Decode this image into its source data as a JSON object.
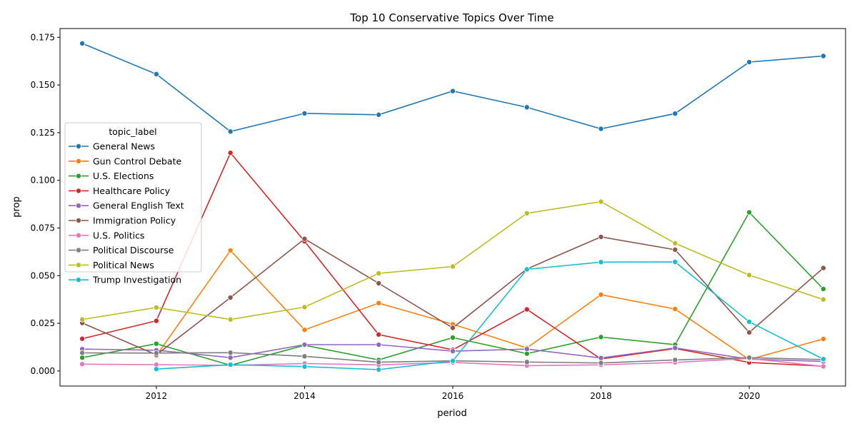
{
  "chart_data": {
    "type": "line",
    "title": "Top 10 Conservative Topics Over Time",
    "xlabel": "period",
    "ylabel": "prop",
    "xlim": [
      2010.7,
      2021.3
    ],
    "ylim": [
      -0.0079,
      0.1796
    ],
    "xticks": [
      2012,
      2014,
      2016,
      2018,
      2020
    ],
    "yticks": [
      0.0,
      0.025,
      0.05,
      0.075,
      0.1,
      0.125,
      0.15,
      0.175
    ],
    "grid": false,
    "legend": {
      "title": "topic_label",
      "placement": "center-left"
    },
    "series": [
      {
        "name": "General News",
        "color": "#1f77b4",
        "x": [
          2011,
          2012,
          2013,
          2014,
          2015,
          2016,
          2017,
          2018,
          2019,
          2020,
          2021
        ],
        "y": [
          0.1718,
          0.1557,
          0.1256,
          0.1351,
          0.1344,
          0.1468,
          0.1383,
          0.127,
          0.135,
          0.162,
          0.1652
        ]
      },
      {
        "name": "Gun Control Debate",
        "color": "#ff7f0e",
        "x": [
          2012,
          2013,
          2014,
          2015,
          2016,
          2017,
          2018,
          2019,
          2020,
          2021
        ],
        "y": [
          0.008,
          0.0632,
          0.0216,
          0.0356,
          0.0245,
          0.0121,
          0.04,
          0.0325,
          0.006,
          0.0168
        ]
      },
      {
        "name": "U.S. Elections",
        "color": "#2ca02c",
        "x": [
          2011,
          2012,
          2013,
          2014,
          2015,
          2016,
          2017,
          2018,
          2019,
          2020,
          2021
        ],
        "y": [
          0.007,
          0.0143,
          0.003,
          0.0135,
          0.0058,
          0.0175,
          0.0091,
          0.0178,
          0.0138,
          0.0832,
          0.043
        ]
      },
      {
        "name": "Healthcare Policy",
        "color": "#d62728",
        "x": [
          2011,
          2012,
          2013,
          2014,
          2015,
          2016,
          2017,
          2018,
          2019,
          2020,
          2021
        ],
        "y": [
          0.0169,
          0.0263,
          0.1144,
          0.068,
          0.0191,
          0.0111,
          0.0323,
          0.0063,
          0.0118,
          0.0045,
          0.0025
        ]
      },
      {
        "name": "General English Text",
        "color": "#9467bd",
        "x": [
          2011,
          2012,
          2013,
          2014,
          2015,
          2016,
          2017,
          2018,
          2019,
          2020,
          2021
        ],
        "y": [
          0.0115,
          0.0109,
          0.007,
          0.0138,
          0.0138,
          0.0104,
          0.0115,
          0.0068,
          0.0121,
          0.0062,
          0.005
        ]
      },
      {
        "name": "Immigration Policy",
        "color": "#8c564b",
        "x": [
          2011,
          2012,
          2013,
          2014,
          2015,
          2016,
          2017,
          2018,
          2019,
          2020,
          2021
        ],
        "y": [
          0.0252,
          0.0085,
          0.0385,
          0.0693,
          0.046,
          0.0226,
          0.0535,
          0.0703,
          0.0636,
          0.0202,
          0.054
        ]
      },
      {
        "name": "U.S. Politics",
        "color": "#e377c2",
        "x": [
          2011,
          2012,
          2013,
          2014,
          2015,
          2016,
          2017,
          2018,
          2019,
          2020,
          2021
        ],
        "y": [
          0.0036,
          0.0033,
          0.003,
          0.0039,
          0.0032,
          0.0045,
          0.0028,
          0.0032,
          0.0045,
          0.0066,
          0.0024
        ]
      },
      {
        "name": "Political Discourse",
        "color": "#7f7f7f",
        "x": [
          2011,
          2012,
          2013,
          2014,
          2015,
          2016,
          2017,
          2018,
          2019,
          2020,
          2021
        ],
        "y": [
          0.0095,
          0.0094,
          0.0096,
          0.0077,
          0.0046,
          0.0053,
          0.0047,
          0.0042,
          0.0058,
          0.007,
          0.006
        ]
      },
      {
        "name": "Political News",
        "color": "#bcbd22",
        "x": [
          2011,
          2012,
          2013,
          2014,
          2015,
          2016,
          2017,
          2018,
          2019,
          2020,
          2021
        ],
        "y": [
          0.027,
          0.0333,
          0.027,
          0.0335,
          0.0512,
          0.0548,
          0.0827,
          0.0888,
          0.067,
          0.0503,
          0.0375
        ]
      },
      {
        "name": "Trump Investigation",
        "color": "#17becf",
        "x": [
          2012,
          2013,
          2014,
          2015,
          2016,
          2017,
          2018,
          2019,
          2020,
          2021
        ],
        "y": [
          0.001,
          0.0033,
          0.0023,
          0.0007,
          0.0053,
          0.0533,
          0.0571,
          0.0572,
          0.0258,
          0.0062
        ]
      }
    ]
  }
}
